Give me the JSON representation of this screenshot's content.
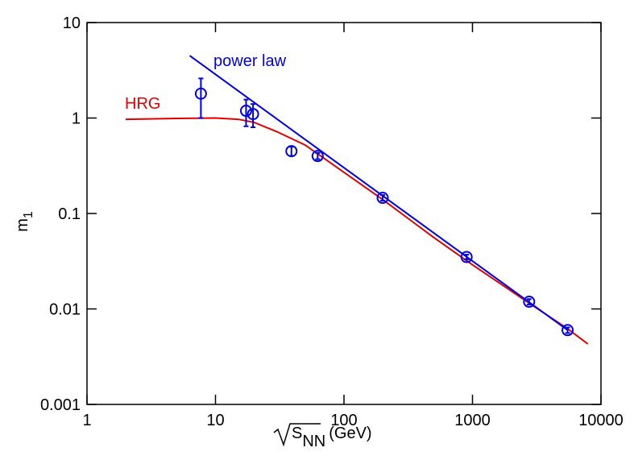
{
  "chart_data": {
    "type": "scatter",
    "xlabel": {
      "root": "S",
      "sub": "NN",
      "unit": "(GeV)"
    },
    "ylabel": {
      "text": "m",
      "sub": "1"
    },
    "xscale": "log",
    "yscale": "log",
    "xlim": [
      1,
      10000
    ],
    "ylim": [
      0.001,
      10
    ],
    "xticks": [
      1,
      10,
      100,
      1000,
      10000
    ],
    "yticks": [
      0.001,
      0.01,
      0.1,
      1,
      10
    ],
    "series": [
      {
        "name": "HRG",
        "type": "line",
        "color": "#e00000",
        "x": [
          2,
          5,
          10,
          15,
          20,
          30,
          50,
          100,
          200,
          500,
          1000,
          2760,
          5500,
          7900
        ],
        "values": [
          0.97,
          0.99,
          1.0,
          0.97,
          0.9,
          0.72,
          0.52,
          0.27,
          0.14,
          0.056,
          0.029,
          0.0115,
          0.0062,
          0.0043
        ]
      },
      {
        "name": "power law",
        "type": "line",
        "color": "#0000e0",
        "x": [
          6.3,
          5500
        ],
        "values": [
          4.5,
          0.006
        ]
      },
      {
        "type": "scatter",
        "color": "#0000e0",
        "x": [
          7.7,
          17.3,
          19.6,
          39,
          62.4,
          200,
          900,
          2760,
          5500
        ],
        "values": [
          1.8,
          1.19,
          1.1,
          0.45,
          0.4,
          0.146,
          0.035,
          0.0119,
          0.006
        ],
        "errors": [
          0.8,
          0.37,
          0.3,
          0.05,
          0.03,
          0.01,
          0.002,
          0.0008,
          0.0004
        ]
      }
    ]
  }
}
